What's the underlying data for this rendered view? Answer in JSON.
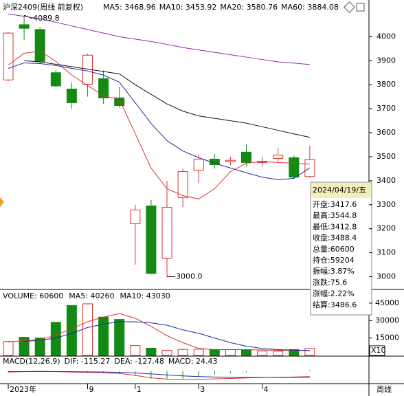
{
  "chart_data": [
    {
      "type": "candlestick",
      "title": "沪深2409(周线 前复权)",
      "categories": [
        "2023年",
        null,
        null,
        null,
        null,
        "9",
        null,
        null,
        "1",
        null,
        null,
        null,
        "3",
        null,
        null,
        null,
        "4",
        null,
        null,
        null
      ],
      "open": [
        3820,
        4050,
        4030,
        3850,
        3782,
        3802,
        3825,
        3745,
        3221,
        3295,
        3077,
        3330,
        3444,
        3490,
        3480,
        3519,
        3476,
        3493,
        3496,
        3417.6
      ],
      "high": [
        4020,
        4089.8,
        4040,
        3860,
        3810,
        3930,
        3860,
        3790,
        3300,
        3320,
        3400,
        3450,
        3510,
        3510,
        3500,
        3550,
        3500,
        3535,
        3505,
        3544.8
      ],
      "low": [
        3815,
        3985,
        3890,
        3790,
        3700,
        3750,
        3720,
        3705,
        3050,
        3010,
        3000,
        3290,
        3390,
        3450,
        3465,
        3460,
        3460,
        3480,
        3410,
        3412.8
      ],
      "close": [
        4015,
        4035,
        3897,
        3795,
        3725,
        3923,
        3745,
        3713,
        3278,
        3014,
        3289,
        3438,
        3490,
        3467,
        3485,
        3476,
        3481,
        3507,
        3415,
        3488.4
      ],
      "up_color": "#e03030",
      "down_color": "#138a13",
      "high_label": "4089.8",
      "low_label": "3000.0",
      "series": [
        {
          "name": "MA5: 3468.96",
          "color": "#e03030",
          "values": [
            3882,
            3931,
            3940,
            3897,
            3840,
            3797,
            3754,
            3739,
            3596,
            3453,
            3367,
            3338,
            3324,
            3367,
            3438,
            3473,
            3479,
            3476,
            3473,
            3468.96
          ]
        },
        {
          "name": "MA10: 3453.92",
          "color": "#1c2aa8",
          "values": [
            3868,
            3891,
            3888,
            3880,
            3868,
            3857,
            3840,
            3811,
            3725,
            3639,
            3567,
            3524,
            3496,
            3473,
            3453,
            3433,
            3415,
            3404,
            3410,
            3453.92
          ]
        },
        {
          "name": "MA20: 3580.76",
          "color": "#111111",
          "values": [
            null,
            3900,
            3895,
            3885,
            3875,
            3865,
            3855,
            3845,
            3800,
            3760,
            3720,
            3690,
            3670,
            3660,
            3650,
            3640,
            3625,
            3610,
            3595,
            3580.76
          ]
        },
        {
          "name": "MA60: 3884.08",
          "color": "#8b2ca0",
          "values": [
            4095,
            4085,
            4075,
            4060,
            4045,
            4030,
            4015,
            4000,
            3990,
            3980,
            3968,
            3955,
            3945,
            3935,
            3925,
            3915,
            3905,
            3895,
            3890,
            3884.08
          ]
        }
      ],
      "ylim": [
        2950,
        4130
      ],
      "yticks": [
        3000,
        3100,
        3200,
        3300,
        3400,
        3500,
        3600,
        3700,
        3800,
        3900,
        4000
      ]
    },
    {
      "type": "bar",
      "legend": "VOLUME: 60600",
      "legend_color": "#a0202a",
      "values": [
        12000,
        15600,
        15000,
        28500,
        43000,
        44400,
        33000,
        31000,
        8500,
        6200,
        4400,
        5200,
        5400,
        4800,
        5000,
        4600,
        3800,
        3600,
        5000,
        6060
      ],
      "series": [
        {
          "name": "MA5: 40260",
          "color": "#e03030",
          "values": [
            11500,
            12800,
            13500,
            17500,
            23000,
            29000,
            33000,
            36000,
            32000,
            25000,
            17000,
            11000,
            6000,
            5000,
            5000,
            5000,
            4700,
            4400,
            4500,
            4026
          ]
        },
        {
          "name": "MA10: 43030",
          "color": "#1c2aa8",
          "values": [
            null,
            12000,
            13000,
            15000,
            19000,
            24000,
            27000,
            29000,
            29000,
            28000,
            26000,
            22000,
            19000,
            15000,
            11000,
            8000,
            6000,
            5000,
            4600,
            4303
          ]
        }
      ],
      "ylim": [
        0,
        55000
      ],
      "yticks": [
        15000,
        30000,
        45000
      ],
      "scale_label": "X10"
    },
    {
      "type": "macd",
      "title": "MACD(12,26,9)",
      "series": [
        {
          "name": "DIF: -115.27",
          "color": "#e03030",
          "values": [
            -20,
            -10,
            -5,
            -10,
            -20,
            -25,
            -35,
            -50,
            -90,
            -140,
            -170,
            -180,
            -175,
            -165,
            -155,
            -145,
            -135,
            -130,
            -125,
            -115.27
          ]
        },
        {
          "name": "DEA: -127.48",
          "color": "#1c2aa8",
          "values": [
            -10,
            -10,
            -8,
            -9,
            -11,
            -14,
            -18,
            -25,
            -38,
            -58,
            -80,
            -100,
            -115,
            -125,
            -131,
            -134,
            -134,
            -133,
            -131,
            -127.48
          ]
        }
      ],
      "histogram": {
        "name": "MACD: 24.43",
        "color": "#8b2ca0",
        "values": [
          -20,
          0,
          6,
          -2,
          -18,
          -22,
          -34,
          -50,
          -104,
          -164,
          -180,
          -160,
          -120,
          -80,
          -48,
          -22,
          -2,
          6,
          12,
          24.43
        ]
      },
      "ylim": [
        -250,
        100
      ]
    }
  ],
  "info_box": {
    "date": "2024/04/19/五",
    "rows": [
      "开盘:3417.6",
      "最高:3544.8",
      "最低:3412.8",
      "收盘:3488.4",
      "总量:60600",
      "持仓:59204",
      "振幅:3.87%",
      "涨跌:75.6",
      "涨幅:2.22%",
      "结算:3486.6"
    ]
  },
  "footer": {
    "period": "周线"
  }
}
